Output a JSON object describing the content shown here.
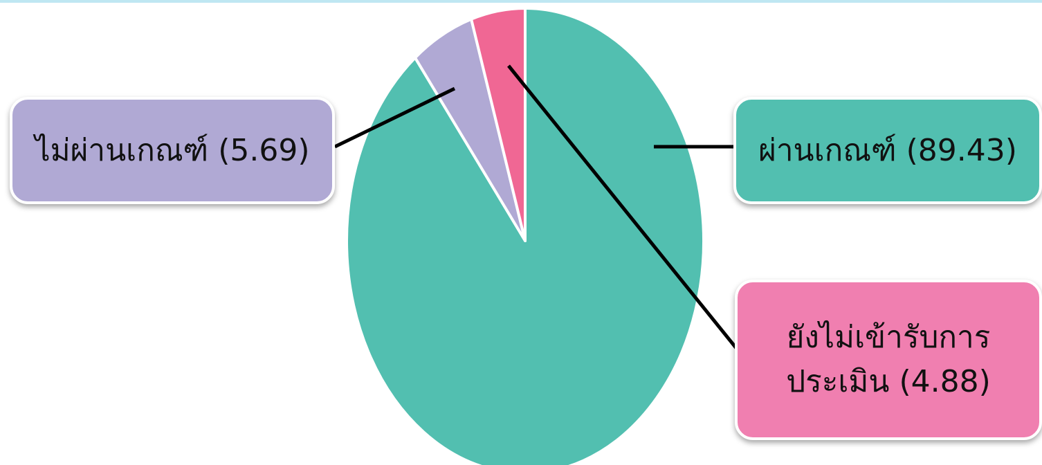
{
  "chart_data": {
    "type": "pie",
    "title": "",
    "slices": [
      {
        "label": "ผ่านเกณฑ์",
        "value": 89.43,
        "color": "#52bfb0",
        "display": [
          "ผ่านเกณฑ์ (89.43)"
        ]
      },
      {
        "label": "ไม่ผ่านเกณฑ์",
        "value": 5.69,
        "color": "#b0a9d4",
        "display": [
          "ไม่ผ่านเกณฑ์ (5.69)"
        ]
      },
      {
        "label": "ยังไม่เข้ารับการประเมิน",
        "value": 4.88,
        "color": "#f06794",
        "display": [
          "ยังไม่เข้ารับการ",
          "ประเมิน (4.88)"
        ]
      }
    ],
    "callout_colors": {
      "pass": "#52bfb0",
      "fail": "#b0a9d4",
      "pending": "#f07fb0"
    },
    "legend": "none"
  }
}
